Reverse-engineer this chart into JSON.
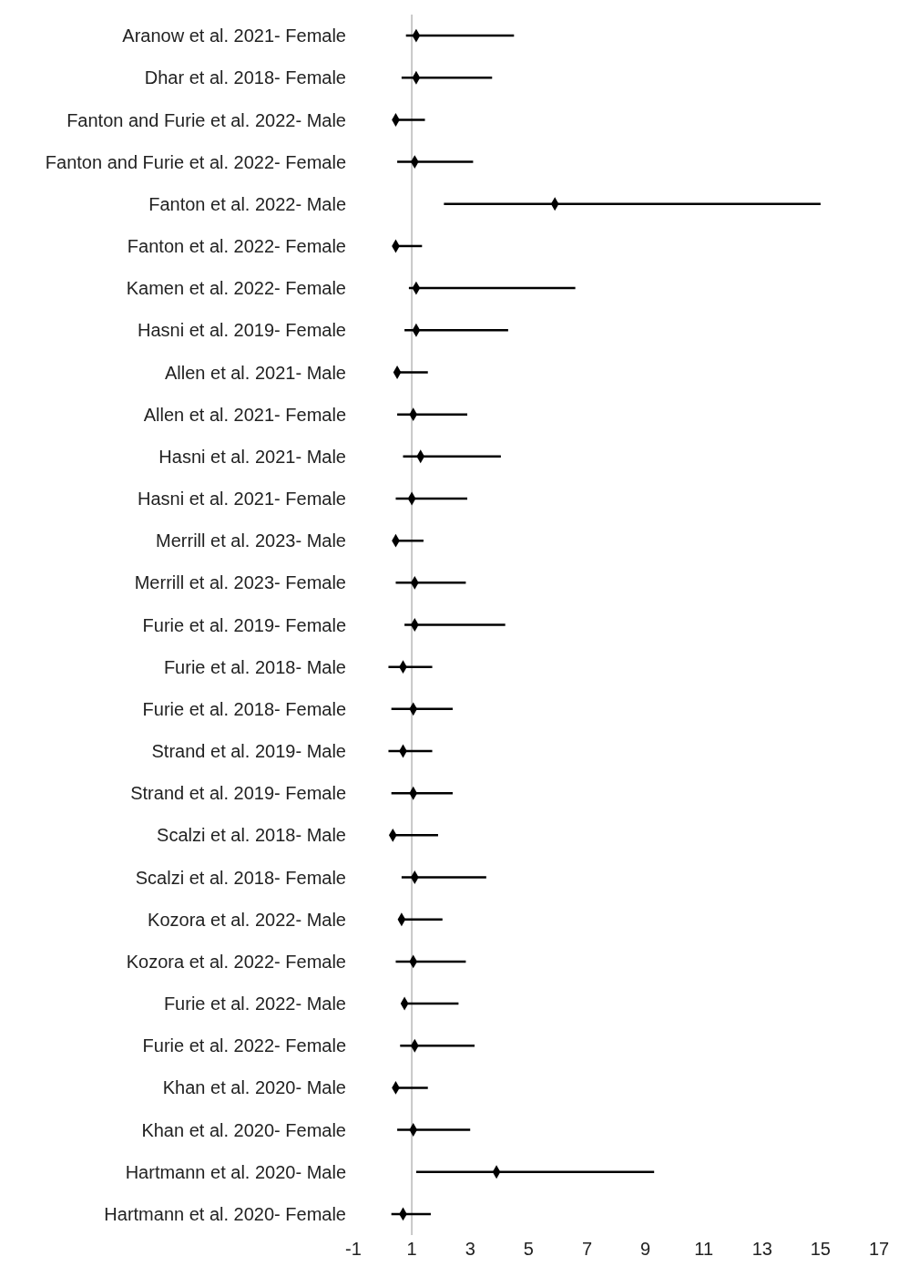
{
  "chart_data": {
    "type": "scatter",
    "orientation": "horizontal",
    "marker": "diamond",
    "categories": [
      "Aranow et al. 2021- Female",
      "Dhar et al. 2018- Female",
      "Fanton and Furie et al. 2022- Male",
      "Fanton and Furie et al. 2022- Female",
      "Fanton et al. 2022- Male",
      "Fanton et al. 2022- Female",
      "Kamen et al. 2022- Female",
      "Hasni et al. 2019- Female",
      "Allen et al. 2021- Male",
      "Allen et al. 2021- Female",
      "Hasni et al. 2021- Male",
      "Hasni et al. 2021- Female",
      "Merrill et al. 2023- Male",
      "Merrill et al. 2023- Female",
      "Furie et al. 2019- Female",
      "Furie et al. 2018- Male",
      "Furie et al. 2018- Female",
      "Strand et al. 2019- Male",
      "Strand et al. 2019- Female",
      "Scalzi et al. 2018- Male",
      "Scalzi et al. 2018- Female",
      "Kozora et al. 2022- Male",
      "Kozora et al. 2022- Female",
      "Furie et al. 2022- Male",
      "Furie et al. 2022- Female",
      "Khan et al. 2020- Male",
      "Khan et al. 2020- Female",
      "Hartmann et al. 2020- Male",
      "Hartmann et al. 2020- Female"
    ],
    "series": [
      {
        "color": "#000000",
        "values": [
          1.15,
          1.15,
          0.45,
          1.1,
          5.9,
          0.45,
          1.15,
          1.15,
          0.5,
          1.05,
          1.3,
          1.0,
          0.45,
          1.1,
          1.1,
          0.7,
          1.05,
          0.7,
          1.05,
          0.35,
          1.1,
          0.65,
          1.05,
          0.75,
          1.1,
          0.45,
          1.05,
          3.9,
          0.7
        ],
        "errors": [
          [
            0.8,
            4.5
          ],
          [
            0.65,
            3.75
          ],
          [
            0.35,
            1.45
          ],
          [
            0.5,
            3.1
          ],
          [
            2.1,
            15.0
          ],
          [
            0.4,
            1.35
          ],
          [
            0.9,
            6.6
          ],
          [
            0.75,
            4.3
          ],
          [
            0.45,
            1.55
          ],
          [
            0.5,
            2.9
          ],
          [
            0.7,
            4.05
          ],
          [
            0.45,
            2.9
          ],
          [
            0.4,
            1.4
          ],
          [
            0.45,
            2.85
          ],
          [
            0.75,
            4.2
          ],
          [
            0.2,
            1.7
          ],
          [
            0.3,
            2.4
          ],
          [
            0.2,
            1.7
          ],
          [
            0.3,
            2.4
          ],
          [
            0.3,
            1.9
          ],
          [
            0.65,
            3.55
          ],
          [
            0.6,
            2.05
          ],
          [
            0.45,
            2.85
          ],
          [
            0.7,
            2.6
          ],
          [
            0.6,
            3.15
          ],
          [
            0.4,
            1.55
          ],
          [
            0.5,
            3.0
          ],
          [
            1.15,
            9.3
          ],
          [
            0.3,
            1.65
          ]
        ]
      }
    ],
    "xlim": [
      -1,
      17
    ],
    "xticks": [
      -1,
      1,
      3,
      5,
      7,
      9,
      11,
      13,
      15,
      17
    ],
    "ref_lines": [
      {
        "axis": "x",
        "value": 1,
        "color": "#c8c8c8"
      }
    ]
  }
}
